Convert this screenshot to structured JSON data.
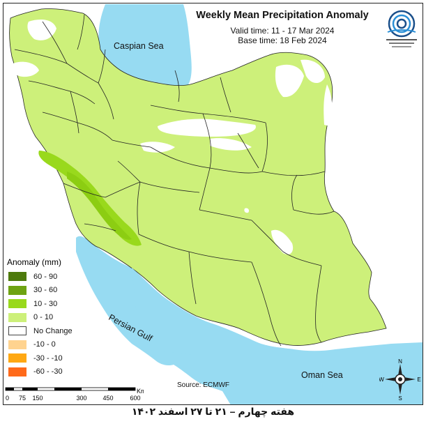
{
  "header": {
    "title": "Weekly Mean Precipitation Anomaly",
    "valid_time": "Valid time:  11 - 17 Mar 2024",
    "base_time": "Base time: 18 Feb 2024"
  },
  "seas": {
    "caspian": "Caspian Sea",
    "persian_gulf": "Persian Gulf",
    "oman": "Oman Sea"
  },
  "legend": {
    "title": "Anomaly (mm)",
    "items": [
      {
        "label": "60 - 90",
        "color": "#4d7a0c"
      },
      {
        "label": "30 - 60",
        "color": "#6ea312"
      },
      {
        "label": "10 - 30",
        "color": "#99d91c"
      },
      {
        "label": "0 - 10",
        "color": "#cdf07a"
      },
      {
        "label": "No Change",
        "color": "#ffffff"
      },
      {
        "label": "-10 - 0",
        "color": "#ffd38f"
      },
      {
        "label": "-30 - -10",
        "color": "#ffa813"
      },
      {
        "label": "-60 - -30",
        "color": "#ff6a1a"
      }
    ]
  },
  "colors": {
    "sea": "#97dbf2",
    "no_change": "#ffffff",
    "level_0_10": "#cdf07a",
    "level_10_30": "#99d91c",
    "borders": "#222222"
  },
  "scale": {
    "ticks": [
      "0",
      "75",
      "150",
      "300",
      "450",
      "600"
    ],
    "unit": "Km"
  },
  "source": "Source: ECMWF",
  "footer": "هفته چهارم – ۲۱ تا ۲۷ اسفند ۱۴۰۲",
  "compass": {
    "n": "N",
    "s": "S",
    "e": "E",
    "w": "W"
  }
}
